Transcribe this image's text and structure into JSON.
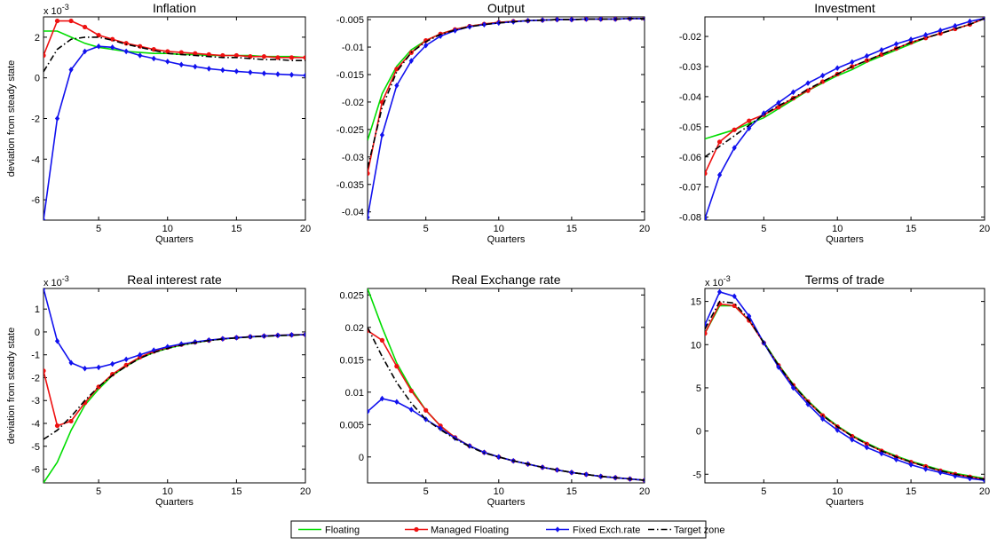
{
  "figure": {
    "legend": {
      "placement": "bottom-center",
      "entries": [
        "Floating",
        "Managed Floating",
        "Fixed Exch.rate",
        "Target zone"
      ]
    }
  },
  "series_styles": [
    {
      "name": "Floating",
      "color": "#00dd00",
      "dash": "solid",
      "marker": "none"
    },
    {
      "name": "Managed Floating",
      "color": "#ee1111",
      "dash": "solid",
      "marker": "circle"
    },
    {
      "name": "Fixed Exch.rate",
      "color": "#1111ee",
      "dash": "solid",
      "marker": "diamond"
    },
    {
      "name": "Target zone",
      "color": "#000000",
      "dash": "dashdot",
      "marker": "none"
    }
  ],
  "chart_data": [
    {
      "type": "line",
      "title": "Inflation",
      "xlabel": "Quarters",
      "ylabel": "deviation from steady state",
      "exponent": "x 10",
      "exponent_power": "-3",
      "xlim": [
        1,
        20
      ],
      "ylim": [
        -7,
        3
      ],
      "xticks": [
        5,
        10,
        15,
        20
      ],
      "xtick_labels": [
        "5",
        "10",
        "15",
        "20"
      ],
      "yticks": [
        -6,
        -4,
        -2,
        0,
        2
      ],
      "ytick_labels": [
        "-6",
        "-4",
        "-2",
        "0",
        "2"
      ],
      "x": [
        1,
        2,
        3,
        4,
        5,
        6,
        7,
        8,
        9,
        10,
        11,
        12,
        13,
        14,
        15,
        16,
        17,
        18,
        19,
        20
      ],
      "series": [
        {
          "name": "Floating",
          "values": [
            2.3,
            2.3,
            2.0,
            1.7,
            1.5,
            1.4,
            1.3,
            1.25,
            1.2,
            1.2,
            1.15,
            1.15,
            1.1,
            1.1,
            1.1,
            1.1,
            1.05,
            1.05,
            1.05,
            1.0
          ]
        },
        {
          "name": "Managed Floating",
          "values": [
            1.1,
            2.8,
            2.8,
            2.5,
            2.1,
            1.9,
            1.7,
            1.55,
            1.4,
            1.3,
            1.25,
            1.2,
            1.15,
            1.1,
            1.1,
            1.05,
            1.05,
            1.0,
            1.0,
            1.0
          ]
        },
        {
          "name": "Fixed Exch.rate",
          "values": [
            -7.0,
            -2.0,
            0.4,
            1.3,
            1.55,
            1.5,
            1.3,
            1.1,
            0.95,
            0.8,
            0.65,
            0.55,
            0.45,
            0.38,
            0.32,
            0.27,
            0.22,
            0.18,
            0.15,
            0.12
          ]
        },
        {
          "name": "Target zone",
          "values": [
            0.3,
            1.4,
            1.9,
            2.0,
            2.0,
            1.85,
            1.65,
            1.5,
            1.35,
            1.2,
            1.15,
            1.1,
            1.05,
            1.0,
            1.0,
            0.95,
            0.9,
            0.9,
            0.85,
            0.85
          ]
        }
      ]
    },
    {
      "type": "line",
      "title": "Output",
      "xlabel": "Quarters",
      "ylabel": "",
      "exponent": "",
      "exponent_power": "",
      "xlim": [
        1,
        20
      ],
      "ylim": [
        -0.0415,
        -0.0045
      ],
      "xticks": [
        5,
        10,
        15,
        20
      ],
      "xtick_labels": [
        "5",
        "10",
        "15",
        "20"
      ],
      "yticks": [
        -0.04,
        -0.035,
        -0.03,
        -0.025,
        -0.02,
        -0.015,
        -0.01,
        -0.005
      ],
      "ytick_labels": [
        "-0.04",
        "-0.035",
        "-0.03",
        "-0.025",
        "-0.02",
        "-0.015",
        "-0.01",
        "-0.005"
      ],
      "x": [
        1,
        2,
        3,
        4,
        5,
        6,
        7,
        8,
        9,
        10,
        11,
        12,
        13,
        14,
        15,
        16,
        17,
        18,
        19,
        20
      ],
      "series": [
        {
          "name": "Floating",
          "values": [
            -0.027,
            -0.0185,
            -0.0135,
            -0.0105,
            -0.0088,
            -0.0076,
            -0.0068,
            -0.0062,
            -0.0058,
            -0.0055,
            -0.0053,
            -0.0052,
            -0.0051,
            -0.005,
            -0.005,
            -0.0049,
            -0.0049,
            -0.0049,
            -0.0048,
            -0.0048
          ]
        },
        {
          "name": "Managed Floating",
          "values": [
            -0.033,
            -0.02,
            -0.014,
            -0.011,
            -0.0088,
            -0.0076,
            -0.0068,
            -0.0062,
            -0.0058,
            -0.0055,
            -0.0053,
            -0.0052,
            -0.0051,
            -0.005,
            -0.005,
            -0.0049,
            -0.0049,
            -0.0049,
            -0.0048,
            -0.0048
          ]
        },
        {
          "name": "Fixed Exch.rate",
          "values": [
            -0.041,
            -0.026,
            -0.017,
            -0.0125,
            -0.0097,
            -0.008,
            -0.007,
            -0.0063,
            -0.0059,
            -0.0056,
            -0.0054,
            -0.0052,
            -0.0051,
            -0.005,
            -0.005,
            -0.0049,
            -0.0049,
            -0.0049,
            -0.0048,
            -0.0048
          ]
        },
        {
          "name": "Target zone",
          "values": [
            -0.032,
            -0.021,
            -0.0145,
            -0.011,
            -0.009,
            -0.0077,
            -0.0069,
            -0.0063,
            -0.0059,
            -0.0056,
            -0.0054,
            -0.0052,
            -0.0051,
            -0.005,
            -0.005,
            -0.0049,
            -0.0049,
            -0.0049,
            -0.0048,
            -0.0048
          ]
        }
      ]
    },
    {
      "type": "line",
      "title": "Investment",
      "xlabel": "Quarters",
      "ylabel": "",
      "exponent": "",
      "exponent_power": "",
      "xlim": [
        1,
        20
      ],
      "ylim": [
        -0.081,
        -0.0135
      ],
      "xticks": [
        5,
        10,
        15,
        20
      ],
      "xtick_labels": [
        "5",
        "10",
        "15",
        "20"
      ],
      "yticks": [
        -0.08,
        -0.07,
        -0.06,
        -0.05,
        -0.04,
        -0.03,
        -0.02
      ],
      "ytick_labels": [
        "-0.08",
        "-0.07",
        "-0.06",
        "-0.05",
        "-0.04",
        "-0.03",
        "-0.02"
      ],
      "x": [
        1,
        2,
        3,
        4,
        5,
        6,
        7,
        8,
        9,
        10,
        11,
        12,
        13,
        14,
        15,
        16,
        17,
        18,
        19,
        20
      ],
      "series": [
        {
          "name": "Floating",
          "values": [
            -0.054,
            -0.0525,
            -0.051,
            -0.049,
            -0.047,
            -0.044,
            -0.041,
            -0.038,
            -0.0355,
            -0.033,
            -0.031,
            -0.0285,
            -0.0265,
            -0.0245,
            -0.0225,
            -0.0205,
            -0.019,
            -0.0175,
            -0.016,
            -0.014
          ]
        },
        {
          "name": "Managed Floating",
          "values": [
            -0.0655,
            -0.055,
            -0.051,
            -0.048,
            -0.046,
            -0.0435,
            -0.0405,
            -0.038,
            -0.035,
            -0.0325,
            -0.03,
            -0.028,
            -0.026,
            -0.024,
            -0.022,
            -0.0205,
            -0.019,
            -0.0175,
            -0.016,
            -0.014
          ]
        },
        {
          "name": "Fixed Exch.rate",
          "values": [
            -0.0805,
            -0.066,
            -0.057,
            -0.0505,
            -0.0455,
            -0.042,
            -0.0385,
            -0.0355,
            -0.033,
            -0.0305,
            -0.0285,
            -0.0265,
            -0.0245,
            -0.0225,
            -0.021,
            -0.0195,
            -0.018,
            -0.0165,
            -0.015,
            -0.014
          ]
        },
        {
          "name": "Target zone",
          "values": [
            -0.06,
            -0.0565,
            -0.053,
            -0.0495,
            -0.046,
            -0.043,
            -0.0405,
            -0.0375,
            -0.035,
            -0.0325,
            -0.03,
            -0.028,
            -0.026,
            -0.024,
            -0.022,
            -0.0205,
            -0.019,
            -0.0175,
            -0.016,
            -0.014
          ]
        }
      ]
    },
    {
      "type": "line",
      "title": "Real interest rate",
      "xlabel": "Quarters",
      "ylabel": "deviation from steady state",
      "exponent": "x 10",
      "exponent_power": "-3",
      "xlim": [
        1,
        20
      ],
      "ylim": [
        -6.6,
        1.9
      ],
      "xticks": [
        5,
        10,
        15,
        20
      ],
      "xtick_labels": [
        "5",
        "10",
        "15",
        "20"
      ],
      "yticks": [
        -6,
        -5,
        -4,
        -3,
        -2,
        -1,
        0,
        1
      ],
      "ytick_labels": [
        "-6",
        "-5",
        "-4",
        "-3",
        "-2",
        "-1",
        "0",
        "1"
      ],
      "x": [
        1,
        2,
        3,
        4,
        5,
        6,
        7,
        8,
        9,
        10,
        11,
        12,
        13,
        14,
        15,
        16,
        17,
        18,
        19,
        20
      ],
      "series": [
        {
          "name": "Floating",
          "values": [
            -6.6,
            -5.7,
            -4.3,
            -3.2,
            -2.5,
            -1.9,
            -1.5,
            -1.15,
            -0.9,
            -0.72,
            -0.58,
            -0.47,
            -0.38,
            -0.31,
            -0.26,
            -0.22,
            -0.19,
            -0.16,
            -0.14,
            -0.12
          ]
        },
        {
          "name": "Managed Floating",
          "values": [
            -1.7,
            -4.1,
            -3.9,
            -3.1,
            -2.4,
            -1.85,
            -1.45,
            -1.1,
            -0.85,
            -0.68,
            -0.55,
            -0.45,
            -0.37,
            -0.3,
            -0.25,
            -0.21,
            -0.18,
            -0.15,
            -0.13,
            -0.12
          ]
        },
        {
          "name": "Fixed Exch.rate",
          "values": [
            1.9,
            -0.4,
            -1.35,
            -1.6,
            -1.55,
            -1.4,
            -1.2,
            -1.0,
            -0.8,
            -0.65,
            -0.53,
            -0.44,
            -0.36,
            -0.3,
            -0.25,
            -0.21,
            -0.18,
            -0.15,
            -0.13,
            -0.12
          ]
        },
        {
          "name": "Target zone",
          "values": [
            -4.7,
            -4.3,
            -3.7,
            -3.0,
            -2.4,
            -1.9,
            -1.5,
            -1.15,
            -0.9,
            -0.72,
            -0.58,
            -0.47,
            -0.38,
            -0.31,
            -0.26,
            -0.22,
            -0.19,
            -0.16,
            -0.14,
            -0.12
          ]
        }
      ]
    },
    {
      "type": "line",
      "title": "Real Exchange rate",
      "xlabel": "Quarters",
      "ylabel": "",
      "exponent": "",
      "exponent_power": "",
      "xlim": [
        1,
        20
      ],
      "ylim": [
        -0.004,
        0.026
      ],
      "xticks": [
        5,
        10,
        15,
        20
      ],
      "xtick_labels": [
        "5",
        "10",
        "15",
        "20"
      ],
      "yticks": [
        0,
        0.005,
        0.01,
        0.015,
        0.02,
        0.025
      ],
      "ytick_labels": [
        "0",
        "0.005",
        "0.01",
        "0.015",
        "0.02",
        "0.025"
      ],
      "x": [
        1,
        2,
        3,
        4,
        5,
        6,
        7,
        8,
        9,
        10,
        11,
        12,
        13,
        14,
        15,
        16,
        17,
        18,
        19,
        20
      ],
      "series": [
        {
          "name": "Floating",
          "values": [
            0.026,
            0.02,
            0.0145,
            0.0105,
            0.0072,
            0.0048,
            0.003,
            0.0017,
            0.0007,
            0.0,
            -0.0006,
            -0.0011,
            -0.0016,
            -0.002,
            -0.0024,
            -0.0027,
            -0.003,
            -0.0032,
            -0.0034,
            -0.0036
          ]
        },
        {
          "name": "Managed Floating",
          "values": [
            0.0195,
            0.018,
            0.014,
            0.0102,
            0.0072,
            0.0048,
            0.003,
            0.0017,
            0.0007,
            0.0,
            -0.0006,
            -0.0011,
            -0.0016,
            -0.002,
            -0.0024,
            -0.0027,
            -0.003,
            -0.0032,
            -0.0034,
            -0.0036
          ]
        },
        {
          "name": "Fixed Exch.rate",
          "values": [
            0.007,
            0.009,
            0.0085,
            0.0073,
            0.0058,
            0.0044,
            0.0029,
            0.0017,
            0.0007,
            0.0,
            -0.0006,
            -0.0011,
            -0.0016,
            -0.002,
            -0.0024,
            -0.0027,
            -0.003,
            -0.0032,
            -0.0034,
            -0.0036
          ]
        },
        {
          "name": "Target zone",
          "values": [
            0.02,
            0.0155,
            0.0115,
            0.0083,
            0.0058,
            0.0042,
            0.0028,
            0.0016,
            0.0006,
            0.0,
            -0.0006,
            -0.0011,
            -0.0016,
            -0.002,
            -0.0024,
            -0.0027,
            -0.003,
            -0.0032,
            -0.0034,
            -0.0036
          ]
        }
      ]
    },
    {
      "type": "line",
      "title": "Terms of trade",
      "xlabel": "Quarters",
      "ylabel": "",
      "exponent": "x 10",
      "exponent_power": "-3",
      "xlim": [
        1,
        20
      ],
      "ylim": [
        -6,
        16.5
      ],
      "xticks": [
        5,
        10,
        15,
        20
      ],
      "xtick_labels": [
        "5",
        "10",
        "15",
        "20"
      ],
      "yticks": [
        -5,
        0,
        5,
        10,
        15
      ],
      "ytick_labels": [
        "-5",
        "0",
        "5",
        "10",
        "15"
      ],
      "x": [
        1,
        2,
        3,
        4,
        5,
        6,
        7,
        8,
        9,
        10,
        11,
        12,
        13,
        14,
        15,
        16,
        17,
        18,
        19,
        20
      ],
      "series": [
        {
          "name": "Floating",
          "values": [
            11.3,
            14.5,
            14.5,
            12.8,
            10.3,
            7.7,
            5.4,
            3.5,
            1.9,
            0.6,
            -0.5,
            -1.4,
            -2.2,
            -2.9,
            -3.5,
            -4.0,
            -4.5,
            -4.9,
            -5.2,
            -5.5
          ]
        },
        {
          "name": "Managed Floating",
          "values": [
            11.3,
            14.7,
            14.5,
            12.8,
            10.2,
            7.6,
            5.3,
            3.4,
            1.8,
            0.5,
            -0.6,
            -1.5,
            -2.3,
            -3.0,
            -3.6,
            -4.1,
            -4.6,
            -5.0,
            -5.3,
            -5.6
          ]
        },
        {
          "name": "Fixed Exch.rate",
          "values": [
            12.3,
            16.1,
            15.6,
            13.3,
            10.2,
            7.4,
            5.0,
            3.1,
            1.4,
            0.1,
            -1.0,
            -1.9,
            -2.6,
            -3.3,
            -3.9,
            -4.4,
            -4.8,
            -5.2,
            -5.5,
            -5.7
          ]
        },
        {
          "name": "Target zone",
          "values": [
            11.8,
            15.0,
            14.8,
            12.9,
            10.2,
            7.6,
            5.3,
            3.4,
            1.8,
            0.5,
            -0.6,
            -1.5,
            -2.3,
            -3.0,
            -3.6,
            -4.1,
            -4.6,
            -5.0,
            -5.3,
            -5.6
          ]
        }
      ]
    }
  ]
}
